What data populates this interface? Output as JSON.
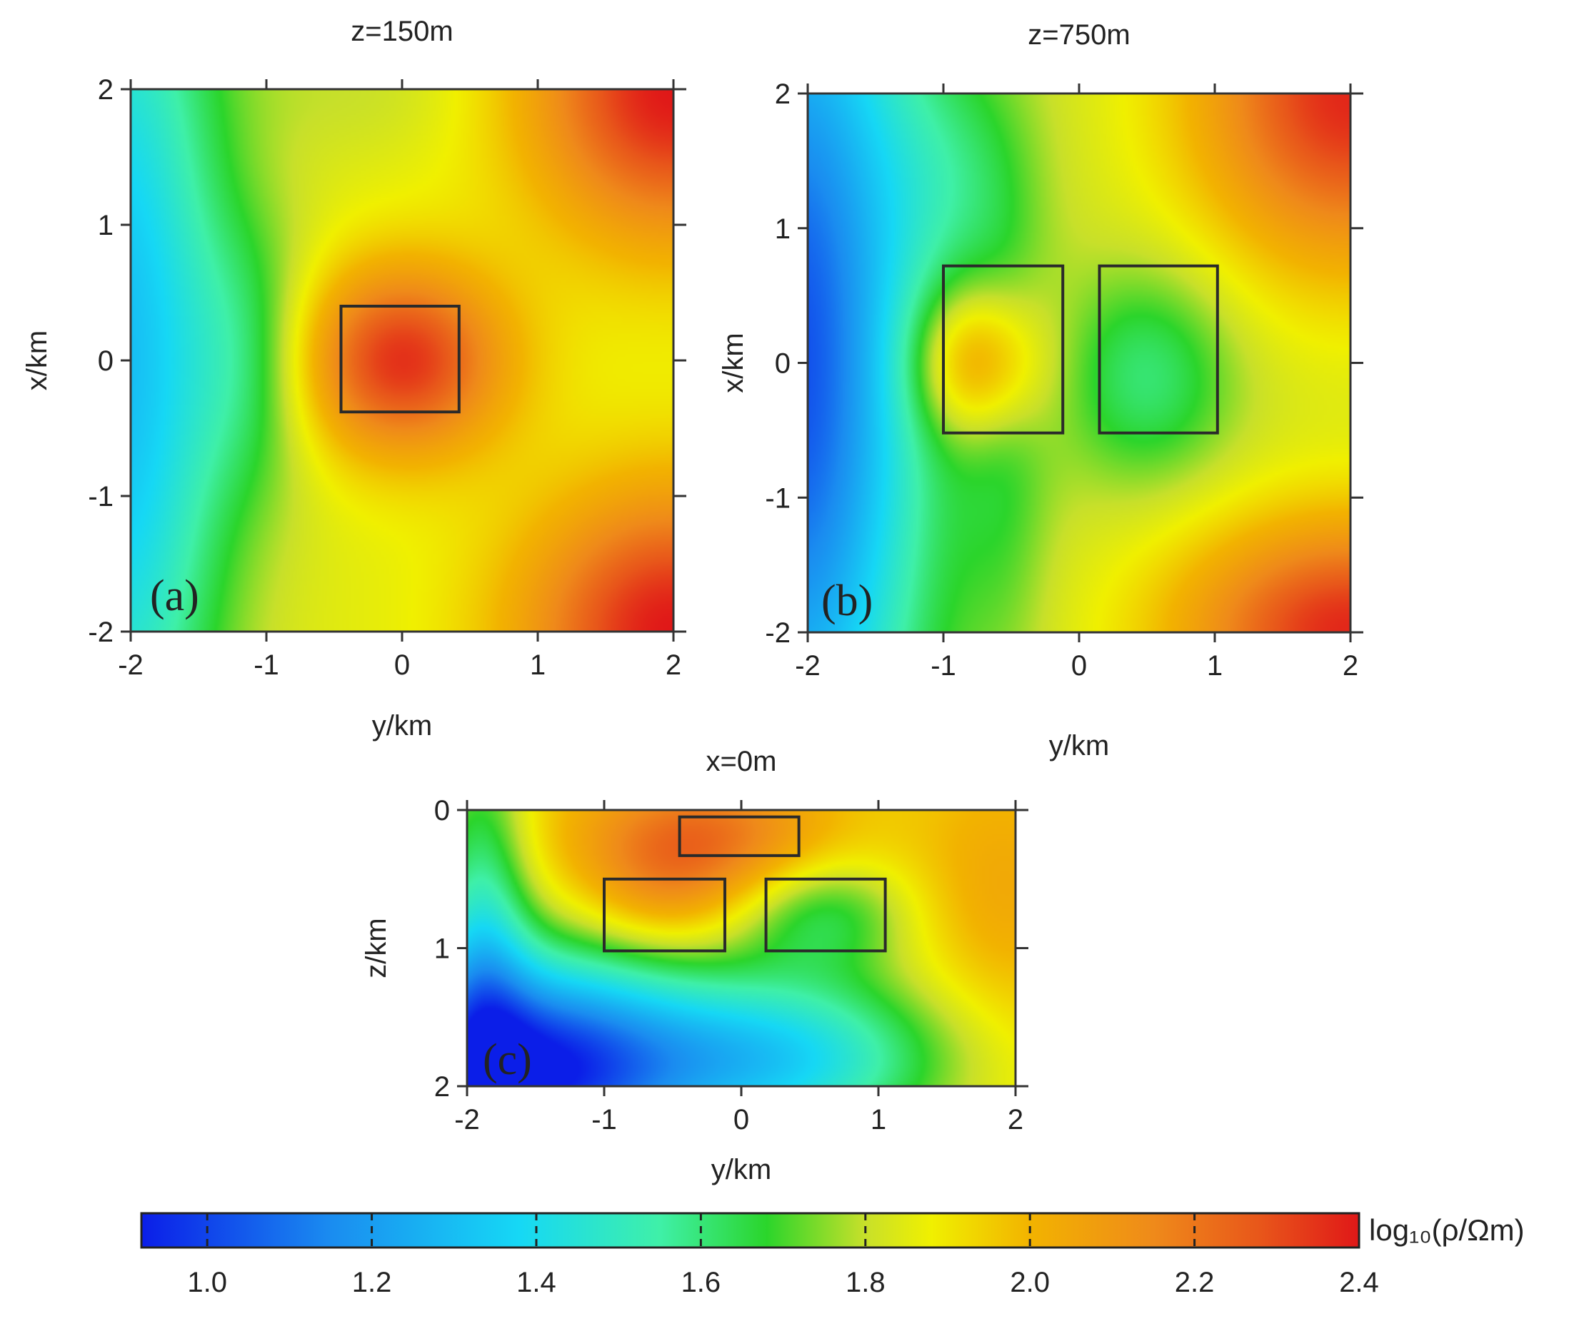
{
  "chart_data": [
    {
      "type": "heatmap",
      "panel_label": "(a)",
      "title": "z=150m",
      "xlabel": "y/km",
      "ylabel": "x/km",
      "xlim": [
        -2,
        2
      ],
      "ylim": [
        -2,
        2
      ],
      "x_ticks": [
        "-2",
        "-1",
        "0",
        "1",
        "2"
      ],
      "y_ticks": [
        "2",
        "1",
        "0",
        "-1",
        "-2"
      ],
      "field": {
        "background": 1.85,
        "blobs": [
          {
            "cx": 0.0,
            "cy": 0.0,
            "sx": 0.55,
            "sy": 0.5,
            "amp": 0.5
          },
          {
            "cx": 2.0,
            "cy": 2.0,
            "sx": 0.75,
            "sy": 0.8,
            "amp": 0.55
          },
          {
            "cx": 2.0,
            "cy": -2.0,
            "sx": 0.8,
            "sy": 0.75,
            "amp": 0.55
          },
          {
            "cx": -2.1,
            "cy": 0.0,
            "sx": 0.55,
            "sy": 2.5,
            "amp": -0.55
          },
          {
            "cx": -1.1,
            "cy": 0.0,
            "sx": 0.35,
            "sy": 0.7,
            "amp": -0.18
          },
          {
            "cx": -0.3,
            "cy": 2.0,
            "sx": 0.6,
            "sy": 0.35,
            "amp": -0.05
          }
        ]
      },
      "bodies": [
        {
          "y0": -0.45,
          "y1": 0.42,
          "x0": -0.38,
          "x1": 0.4
        }
      ]
    },
    {
      "type": "heatmap",
      "panel_label": "(b)",
      "title": "z=750m",
      "xlabel": "y/km",
      "ylabel": "x/km",
      "xlim": [
        -2,
        2
      ],
      "ylim": [
        -2,
        2
      ],
      "x_ticks": [
        "-2",
        "-1",
        "0",
        "1",
        "2"
      ],
      "y_ticks": [
        "2",
        "1",
        "0",
        "-1",
        "-2"
      ],
      "field": {
        "background": 1.82,
        "blobs": [
          {
            "cx": -0.75,
            "cy": 0.0,
            "sx": 0.35,
            "sy": 0.4,
            "amp": 0.35
          },
          {
            "cx": 0.5,
            "cy": -0.1,
            "sx": 0.45,
            "sy": 0.55,
            "amp": -0.22
          },
          {
            "cx": -0.55,
            "cy": -0.5,
            "sx": 0.25,
            "sy": 1.2,
            "amp": -0.12
          },
          {
            "cx": 2.0,
            "cy": 2.0,
            "sx": 0.8,
            "sy": 0.9,
            "amp": 0.55
          },
          {
            "cx": 2.0,
            "cy": -2.0,
            "sx": 0.9,
            "sy": 0.6,
            "amp": 0.55
          },
          {
            "cx": -2.1,
            "cy": 0.0,
            "sx": 0.65,
            "sy": 2.5,
            "amp": -0.8
          },
          {
            "cx": -0.9,
            "cy": 1.4,
            "sx": 0.4,
            "sy": 0.6,
            "amp": -0.12
          }
        ]
      },
      "bodies": [
        {
          "y0": -1.0,
          "y1": -0.12,
          "x0": -0.52,
          "x1": 0.72
        },
        {
          "y0": 0.15,
          "y1": 1.02,
          "x0": -0.52,
          "x1": 0.72
        }
      ]
    },
    {
      "type": "heatmap",
      "panel_label": "(c)",
      "title": "x=0m",
      "xlabel": "y/km",
      "ylabel": "z/km",
      "xlim": [
        -2,
        2
      ],
      "ylim": [
        0,
        2
      ],
      "x_ticks": [
        "-2",
        "-1",
        "0",
        "1",
        "2"
      ],
      "y_ticks": [
        "0",
        "1",
        "2"
      ],
      "field": {
        "background": 1.92,
        "blobs": [
          {
            "cx": -0.3,
            "cy": 0.2,
            "sx": 0.65,
            "sy": 0.35,
            "amp": 0.3
          },
          {
            "cx": -0.6,
            "cy": 0.6,
            "sx": 0.4,
            "sy": 0.3,
            "amp": 0.12
          },
          {
            "cx": 0.6,
            "cy": 0.75,
            "sx": 0.45,
            "sy": 0.3,
            "amp": -0.25
          },
          {
            "cx": -1.6,
            "cy": 1.9,
            "sx": 0.8,
            "sy": 0.6,
            "amp": -0.95
          },
          {
            "cx": 0.2,
            "cy": 1.8,
            "sx": 0.9,
            "sy": 0.45,
            "amp": -0.55
          },
          {
            "cx": -1.9,
            "cy": 0.9,
            "sx": 0.25,
            "sy": 1.0,
            "amp": -0.35
          },
          {
            "cx": 1.9,
            "cy": 0.6,
            "sx": 0.45,
            "sy": 0.7,
            "amp": 0.12
          }
        ]
      },
      "bodies": [
        {
          "y0": -0.45,
          "y1": 0.42,
          "z0": 0.05,
          "z1": 0.33
        },
        {
          "y0": -1.0,
          "y1": -0.12,
          "z0": 0.5,
          "z1": 1.02
        },
        {
          "y0": 0.18,
          "y1": 1.05,
          "z0": 0.5,
          "z1": 1.02
        }
      ]
    }
  ],
  "colorbar": {
    "label": "log₁₀(ρ/Ωm)",
    "range": [
      0.92,
      2.4
    ],
    "ticks": [
      1.0,
      1.2,
      1.4,
      1.6,
      1.8,
      2.0,
      2.2,
      2.4
    ],
    "tick_labels": [
      "1.0",
      "1.2",
      "1.4",
      "1.6",
      "1.8",
      "2.0",
      "2.2",
      "2.4"
    ],
    "colormap": [
      {
        "v": 0.92,
        "color": "#0b1ee8"
      },
      {
        "v": 1.15,
        "color": "#1a8cf0"
      },
      {
        "v": 1.38,
        "color": "#16d8f5"
      },
      {
        "v": 1.55,
        "color": "#3ff0a8"
      },
      {
        "v": 1.68,
        "color": "#2bd52b"
      },
      {
        "v": 1.8,
        "color": "#c8e02a"
      },
      {
        "v": 1.88,
        "color": "#f0f000"
      },
      {
        "v": 2.0,
        "color": "#f2b300"
      },
      {
        "v": 2.15,
        "color": "#ef8a1a"
      },
      {
        "v": 2.28,
        "color": "#e8561a"
      },
      {
        "v": 2.4,
        "color": "#e01818"
      }
    ]
  }
}
